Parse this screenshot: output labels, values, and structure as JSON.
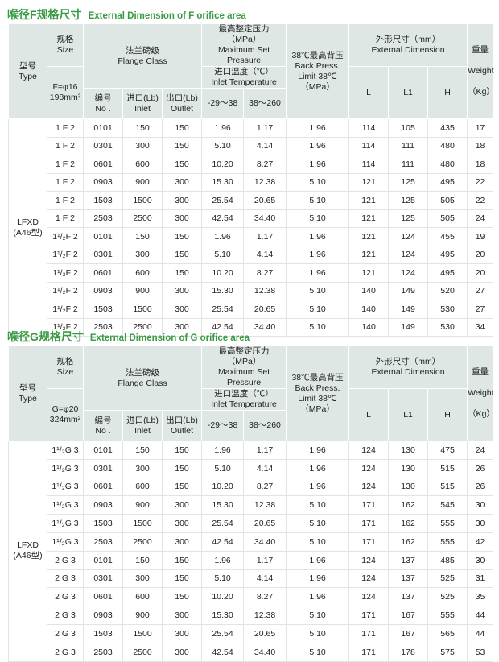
{
  "header": {
    "type_cn": "型号",
    "type_en": "Type",
    "size_cn": "规格",
    "size_en": "Size",
    "flange_cn": "法兰磅级",
    "flange_en": "Flange  Class",
    "pressure_cn": "最高整定压力（MPa）",
    "pressure_en": "Maximum Set Pressure",
    "temp_cn": "进口温度（℃）",
    "temp_en": "Inlet Temperature",
    "back_cn": "38℃最高背压",
    "back_en1": "Back Press.",
    "back_en2": "Limit 38℃",
    "back_unit": "（MPa）",
    "dim_cn": "外形尺寸（mm）",
    "dim_en": "External Dimension",
    "weight_cn": "重量",
    "weight_en": "Weight",
    "weight_unit": "（Kg）",
    "no_cn": "编号",
    "no_en": "No .",
    "inlet_cn": "进口(Lb)",
    "inlet_en": "Inlet",
    "outlet_cn": "出口(Lb)",
    "outlet_en": "Outlet",
    "t1": "-29～38",
    "t2": "38～260",
    "L": "L",
    "L1": "L1",
    "H": "H"
  },
  "tables": [
    {
      "title_cn": "喉径F规格尺寸",
      "title_en": "External Dimension of F orifice area",
      "size_line1": "F=φ16",
      "size_line2": "198mm²",
      "type_line1": "LFXD",
      "type_line2": "(A46型)",
      "rows": [
        [
          "1 F 2",
          "0101",
          "150",
          "150",
          "1.96",
          "1.17",
          "1.96",
          "114",
          "105",
          "435",
          "17"
        ],
        [
          "1 F 2",
          "0301",
          "300",
          "150",
          "5.10",
          "4.14",
          "1.96",
          "114",
          "111",
          "480",
          "18"
        ],
        [
          "1 F 2",
          "0601",
          "600",
          "150",
          "10.20",
          "8.27",
          "1.96",
          "114",
          "111",
          "480",
          "18"
        ],
        [
          "1 F 2",
          "0903",
          "900",
          "300",
          "15.30",
          "12.38",
          "5.10",
          "121",
          "125",
          "495",
          "22"
        ],
        [
          "1 F 2",
          "1503",
          "1500",
          "300",
          "25.54",
          "20.65",
          "5.10",
          "121",
          "125",
          "505",
          "22"
        ],
        [
          "1 F 2",
          "2503",
          "2500",
          "300",
          "42.54",
          "34.40",
          "5.10",
          "121",
          "125",
          "505",
          "24"
        ],
        [
          "1¹/₂F 2",
          "0101",
          "150",
          "150",
          "1.96",
          "1.17",
          "1.96",
          "121",
          "124",
          "455",
          "19"
        ],
        [
          "1¹/₂F 2",
          "0301",
          "300",
          "150",
          "5.10",
          "4.14",
          "1.96",
          "121",
          "124",
          "495",
          "20"
        ],
        [
          "1¹/₂F 2",
          "0601",
          "600",
          "150",
          "10.20",
          "8.27",
          "1.96",
          "121",
          "124",
          "495",
          "20"
        ],
        [
          "1¹/₂F 2",
          "0903",
          "900",
          "300",
          "15.30",
          "12.38",
          "5.10",
          "140",
          "149",
          "520",
          "27"
        ],
        [
          "1¹/₂F 2",
          "1503",
          "1500",
          "300",
          "25.54",
          "20.65",
          "5.10",
          "140",
          "149",
          "530",
          "27"
        ],
        [
          "1¹/₂F 2",
          "2503",
          "2500",
          "300",
          "42.54",
          "34.40",
          "5.10",
          "140",
          "149",
          "530",
          "34"
        ]
      ]
    },
    {
      "title_cn": "喉径G规格尺寸",
      "title_en": "External Dimension of G orifice area",
      "size_line1": "G=φ20",
      "size_line2": "324mm²",
      "type_line1": "LFXD",
      "type_line2": "(A46型)",
      "rows": [
        [
          "1¹/₂G 3",
          "0101",
          "150",
          "150",
          "1.96",
          "1.17",
          "1.96",
          "124",
          "130",
          "475",
          "24"
        ],
        [
          "1¹/₂G 3",
          "0301",
          "300",
          "150",
          "5.10",
          "4.14",
          "1.96",
          "124",
          "130",
          "515",
          "26"
        ],
        [
          "1¹/₂G 3",
          "0601",
          "600",
          "150",
          "10.20",
          "8.27",
          "1.96",
          "124",
          "130",
          "515",
          "26"
        ],
        [
          "1¹/₂G 3",
          "0903",
          "900",
          "300",
          "15.30",
          "12.38",
          "5.10",
          "171",
          "162",
          "545",
          "30"
        ],
        [
          "1¹/₂G 3",
          "1503",
          "1500",
          "300",
          "25.54",
          "20.65",
          "5.10",
          "171",
          "162",
          "555",
          "30"
        ],
        [
          "1¹/₂G 3",
          "2503",
          "2500",
          "300",
          "42.54",
          "34.40",
          "5.10",
          "171",
          "162",
          "555",
          "42"
        ],
        [
          "2 G 3",
          "0101",
          "150",
          "150",
          "1.96",
          "1.17",
          "1.96",
          "124",
          "137",
          "485",
          "30"
        ],
        [
          "2 G 3",
          "0301",
          "300",
          "150",
          "5.10",
          "4.14",
          "1.96",
          "124",
          "137",
          "525",
          "31"
        ],
        [
          "2 G 3",
          "0601",
          "600",
          "150",
          "10.20",
          "8.27",
          "1.96",
          "124",
          "137",
          "525",
          "35"
        ],
        [
          "2 G 3",
          "0903",
          "900",
          "300",
          "15.30",
          "12.38",
          "5.10",
          "171",
          "167",
          "555",
          "44"
        ],
        [
          "2 G 3",
          "1503",
          "1500",
          "300",
          "25.54",
          "20.65",
          "5.10",
          "171",
          "167",
          "565",
          "44"
        ],
        [
          "2 G 3",
          "2503",
          "2500",
          "300",
          "42.54",
          "34.40",
          "5.10",
          "171",
          "178",
          "575",
          "53"
        ]
      ]
    }
  ]
}
